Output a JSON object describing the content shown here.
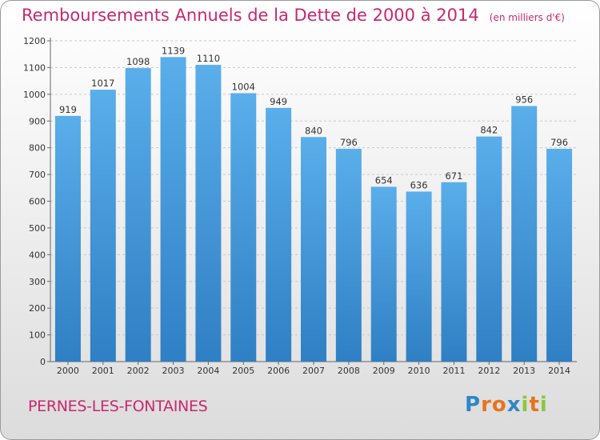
{
  "chart_data": {
    "type": "bar",
    "title": "Remboursements Annuels de la Dette de 2000 à 2014",
    "subtitle": "(en milliers d'€)",
    "categories": [
      "2000",
      "2001",
      "2002",
      "2003",
      "2004",
      "2005",
      "2006",
      "2007",
      "2008",
      "2009",
      "2010",
      "2011",
      "2012",
      "2013",
      "2014"
    ],
    "values": [
      919,
      1017,
      1098,
      1139,
      1110,
      1004,
      949,
      840,
      796,
      654,
      636,
      671,
      842,
      956,
      796
    ],
    "ylim": [
      0,
      1200
    ],
    "yticks": [
      0,
      100,
      200,
      300,
      400,
      500,
      600,
      700,
      800,
      900,
      1000,
      1100,
      1200
    ],
    "xlabel": "",
    "ylabel": "",
    "grid": true,
    "bar_color": "#3a91d8"
  },
  "footer": {
    "city": "PERNES-LES-FONTAINES",
    "logo_letters": [
      "P",
      "r",
      "o",
      "x",
      "i",
      "t",
      "i"
    ],
    "logo_colors": [
      "#2f86c7",
      "#e8731c",
      "#e8731c",
      "#2f86c7",
      "#8cc63f",
      "#e8731c",
      "#8cc63f"
    ]
  }
}
